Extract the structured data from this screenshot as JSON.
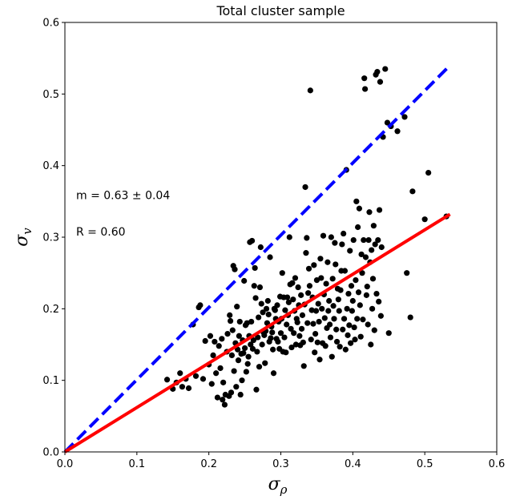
{
  "chart_data": {
    "type": "scatter",
    "title": "Total cluster sample",
    "xlabel": {
      "main": "σ",
      "sub": "ρ"
    },
    "ylabel": {
      "main": "σ",
      "sub": "v"
    },
    "xlim": [
      0.0,
      0.6
    ],
    "ylim": [
      0.0,
      0.6
    ],
    "xticks": [
      "0.0",
      "0.1",
      "0.2",
      "0.3",
      "0.4",
      "0.5",
      "0.6"
    ],
    "yticks": [
      "0.0",
      "0.1",
      "0.2",
      "0.3",
      "0.4",
      "0.5",
      "0.6"
    ],
    "grid": false,
    "annotations": [
      "m = 0.63 ± 0.04",
      "R = 0.60"
    ],
    "lines": [
      {
        "style": "dashed",
        "color": "#0000ff",
        "x": [
          0.0,
          0.535
        ],
        "y": [
          0.0,
          0.54
        ]
      },
      {
        "style": "solid",
        "color": "#ff0000",
        "x": [
          0.0,
          0.535
        ],
        "y": [
          0.0,
          0.332
        ]
      }
    ],
    "points": [
      [
        0.142,
        0.101
      ],
      [
        0.15,
        0.088
      ],
      [
        0.155,
        0.097
      ],
      [
        0.16,
        0.11
      ],
      [
        0.163,
        0.091
      ],
      [
        0.168,
        0.102
      ],
      [
        0.172,
        0.089
      ],
      [
        0.178,
        0.178
      ],
      [
        0.182,
        0.106
      ],
      [
        0.186,
        0.202
      ],
      [
        0.188,
        0.205
      ],
      [
        0.192,
        0.102
      ],
      [
        0.195,
        0.155
      ],
      [
        0.2,
        0.122
      ],
      [
        0.202,
        0.162
      ],
      [
        0.204,
        0.095
      ],
      [
        0.206,
        0.135
      ],
      [
        0.208,
        0.154
      ],
      [
        0.21,
        0.11
      ],
      [
        0.212,
        0.076
      ],
      [
        0.214,
        0.148
      ],
      [
        0.216,
        0.117
      ],
      [
        0.218,
        0.158
      ],
      [
        0.219,
        0.073
      ],
      [
        0.22,
        0.097
      ],
      [
        0.222,
        0.066
      ],
      [
        0.223,
        0.08
      ],
      [
        0.225,
        0.14
      ],
      [
        0.226,
        0.165
      ],
      [
        0.228,
        0.078
      ],
      [
        0.229,
        0.191
      ],
      [
        0.23,
        0.183
      ],
      [
        0.231,
        0.083
      ],
      [
        0.232,
        0.135
      ],
      [
        0.233,
        0.17
      ],
      [
        0.234,
        0.26
      ],
      [
        0.235,
        0.113
      ],
      [
        0.236,
        0.255
      ],
      [
        0.237,
        0.152
      ],
      [
        0.238,
        0.091
      ],
      [
        0.239,
        0.203
      ],
      [
        0.24,
        0.143
      ],
      [
        0.241,
        0.128
      ],
      [
        0.242,
        0.162
      ],
      [
        0.243,
        0.182
      ],
      [
        0.244,
        0.08
      ],
      [
        0.245,
        0.137
      ],
      [
        0.246,
        0.1
      ],
      [
        0.247,
        0.156
      ],
      [
        0.248,
        0.138
      ],
      [
        0.249,
        0.239
      ],
      [
        0.25,
        0.145
      ],
      [
        0.251,
        0.177
      ],
      [
        0.252,
        0.112
      ],
      [
        0.253,
        0.18
      ],
      [
        0.254,
        0.123
      ],
      [
        0.255,
        0.133
      ],
      [
        0.256,
        0.162
      ],
      [
        0.257,
        0.293
      ],
      [
        0.258,
        0.15
      ],
      [
        0.259,
        0.182
      ],
      [
        0.26,
        0.295
      ],
      [
        0.261,
        0.144
      ],
      [
        0.262,
        0.156
      ],
      [
        0.263,
        0.232
      ],
      [
        0.264,
        0.257
      ],
      [
        0.265,
        0.215
      ],
      [
        0.266,
        0.087
      ],
      [
        0.267,
        0.14
      ],
      [
        0.268,
        0.16
      ],
      [
        0.269,
        0.188
      ],
      [
        0.27,
        0.119
      ],
      [
        0.271,
        0.23
      ],
      [
        0.272,
        0.286
      ],
      [
        0.273,
        0.207
      ],
      [
        0.274,
        0.15
      ],
      [
        0.275,
        0.195
      ],
      [
        0.276,
        0.167
      ],
      [
        0.277,
        0.163
      ],
      [
        0.278,
        0.124
      ],
      [
        0.279,
        0.169
      ],
      [
        0.28,
        0.2
      ],
      [
        0.281,
        0.18
      ],
      [
        0.282,
        0.211
      ],
      [
        0.283,
        0.192
      ],
      [
        0.284,
        0.154
      ],
      [
        0.285,
        0.272
      ],
      [
        0.286,
        0.159
      ],
      [
        0.287,
        0.175
      ],
      [
        0.288,
        0.167
      ],
      [
        0.289,
        0.143
      ],
      [
        0.29,
        0.11
      ],
      [
        0.291,
        0.2
      ],
      [
        0.292,
        0.198
      ],
      [
        0.293,
        0.186
      ],
      [
        0.294,
        0.158
      ],
      [
        0.295,
        0.205
      ],
      [
        0.296,
        0.154
      ],
      [
        0.297,
        0.182
      ],
      [
        0.298,
        0.144
      ],
      [
        0.299,
        0.217
      ],
      [
        0.3,
        0.166
      ],
      [
        0.301,
        0.186
      ],
      [
        0.302,
        0.25
      ],
      [
        0.303,
        0.14
      ],
      [
        0.304,
        0.216
      ],
      [
        0.305,
        0.16
      ],
      [
        0.306,
        0.198
      ],
      [
        0.307,
        0.139
      ],
      [
        0.308,
        0.178
      ],
      [
        0.309,
        0.216
      ],
      [
        0.31,
        0.191
      ],
      [
        0.311,
        0.209
      ],
      [
        0.312,
        0.3
      ],
      [
        0.313,
        0.234
      ],
      [
        0.314,
        0.172
      ],
      [
        0.315,
        0.146
      ],
      [
        0.316,
        0.236
      ],
      [
        0.317,
        0.213
      ],
      [
        0.318,
        0.166
      ],
      [
        0.319,
        0.197
      ],
      [
        0.32,
        0.243
      ],
      [
        0.321,
        0.15
      ],
      [
        0.322,
        0.186
      ],
      [
        0.323,
        0.181
      ],
      [
        0.324,
        0.23
      ],
      [
        0.325,
        0.205
      ],
      [
        0.326,
        0.162
      ],
      [
        0.327,
        0.149
      ],
      [
        0.328,
        0.219
      ],
      [
        0.329,
        0.172
      ],
      [
        0.33,
        0.191
      ],
      [
        0.331,
        0.153
      ],
      [
        0.332,
        0.12
      ],
      [
        0.333,
        0.206
      ],
      [
        0.334,
        0.37
      ],
      [
        0.335,
        0.278
      ],
      [
        0.336,
        0.299
      ],
      [
        0.337,
        0.18
      ],
      [
        0.338,
        0.222
      ],
      [
        0.339,
        0.256
      ],
      [
        0.34,
        0.232
      ],
      [
        0.341,
        0.505
      ],
      [
        0.342,
        0.157
      ],
      [
        0.343,
        0.198
      ],
      [
        0.344,
        0.216
      ],
      [
        0.345,
        0.179
      ],
      [
        0.346,
        0.261
      ],
      [
        0.347,
        0.139
      ],
      [
        0.348,
        0.165
      ],
      [
        0.349,
        0.197
      ],
      [
        0.35,
        0.24
      ],
      [
        0.351,
        0.153
      ],
      [
        0.352,
        0.207
      ],
      [
        0.353,
        0.182
      ],
      [
        0.354,
        0.129
      ],
      [
        0.355,
        0.27
      ],
      [
        0.356,
        0.243
      ],
      [
        0.357,
        0.2
      ],
      [
        0.358,
        0.152
      ],
      [
        0.359,
        0.302
      ],
      [
        0.36,
        0.22
      ],
      [
        0.361,
        0.187
      ],
      [
        0.362,
        0.148
      ],
      [
        0.363,
        0.235
      ],
      [
        0.364,
        0.173
      ],
      [
        0.365,
        0.265
      ],
      [
        0.366,
        0.197
      ],
      [
        0.367,
        0.211
      ],
      [
        0.368,
        0.178
      ],
      [
        0.369,
        0.16
      ],
      [
        0.37,
        0.3
      ],
      [
        0.371,
        0.133
      ],
      [
        0.372,
        0.242
      ],
      [
        0.373,
        0.204
      ],
      [
        0.374,
        0.186
      ],
      [
        0.375,
        0.292
      ],
      [
        0.376,
        0.262
      ],
      [
        0.377,
        0.171
      ],
      [
        0.378,
        0.154
      ],
      [
        0.379,
        0.228
      ],
      [
        0.38,
        0.213
      ],
      [
        0.381,
        0.197
      ],
      [
        0.382,
        0.147
      ],
      [
        0.383,
        0.226
      ],
      [
        0.384,
        0.253
      ],
      [
        0.385,
        0.29
      ],
      [
        0.386,
        0.171
      ],
      [
        0.387,
        0.305
      ],
      [
        0.388,
        0.186
      ],
      [
        0.389,
        0.253
      ],
      [
        0.39,
        0.143
      ],
      [
        0.391,
        0.394
      ],
      [
        0.392,
        0.2
      ],
      [
        0.393,
        0.163
      ],
      [
        0.394,
        0.221
      ],
      [
        0.395,
        0.177
      ],
      [
        0.396,
        0.281
      ],
      [
        0.397,
        0.152
      ],
      [
        0.398,
        0.232
      ],
      [
        0.399,
        0.197
      ],
      [
        0.4,
        0.211
      ],
      [
        0.401,
        0.296
      ],
      [
        0.402,
        0.174
      ],
      [
        0.403,
        0.157
      ],
      [
        0.404,
        0.24
      ],
      [
        0.405,
        0.35
      ],
      [
        0.406,
        0.186
      ],
      [
        0.407,
        0.314
      ],
      [
        0.408,
        0.223
      ],
      [
        0.409,
        0.34
      ],
      [
        0.41,
        0.205
      ],
      [
        0.411,
        0.161
      ],
      [
        0.412,
        0.276
      ],
      [
        0.413,
        0.25
      ],
      [
        0.414,
        0.185
      ],
      [
        0.415,
        0.296
      ],
      [
        0.416,
        0.522
      ],
      [
        0.417,
        0.507
      ],
      [
        0.418,
        0.272
      ],
      [
        0.419,
        0.219
      ],
      [
        0.42,
        0.231
      ],
      [
        0.421,
        0.178
      ],
      [
        0.422,
        0.296
      ],
      [
        0.423,
        0.335
      ],
      [
        0.424,
        0.265
      ],
      [
        0.425,
        0.15
      ],
      [
        0.426,
        0.282
      ],
      [
        0.427,
        0.2
      ],
      [
        0.428,
        0.242
      ],
      [
        0.429,
        0.316
      ],
      [
        0.43,
        0.17
      ],
      [
        0.431,
        0.29
      ],
      [
        0.432,
        0.527
      ],
      [
        0.433,
        0.221
      ],
      [
        0.434,
        0.531
      ],
      [
        0.435,
        0.296
      ],
      [
        0.436,
        0.21
      ],
      [
        0.437,
        0.338
      ],
      [
        0.438,
        0.517
      ],
      [
        0.439,
        0.19
      ],
      [
        0.44,
        0.286
      ],
      [
        0.442,
        0.44
      ],
      [
        0.445,
        0.535
      ],
      [
        0.448,
        0.46
      ],
      [
        0.45,
        0.166
      ],
      [
        0.453,
        0.455
      ],
      [
        0.462,
        0.448
      ],
      [
        0.472,
        0.468
      ],
      [
        0.475,
        0.25
      ],
      [
        0.48,
        0.188
      ],
      [
        0.483,
        0.364
      ],
      [
        0.5,
        0.325
      ],
      [
        0.505,
        0.39
      ],
      [
        0.53,
        0.329
      ]
    ]
  }
}
